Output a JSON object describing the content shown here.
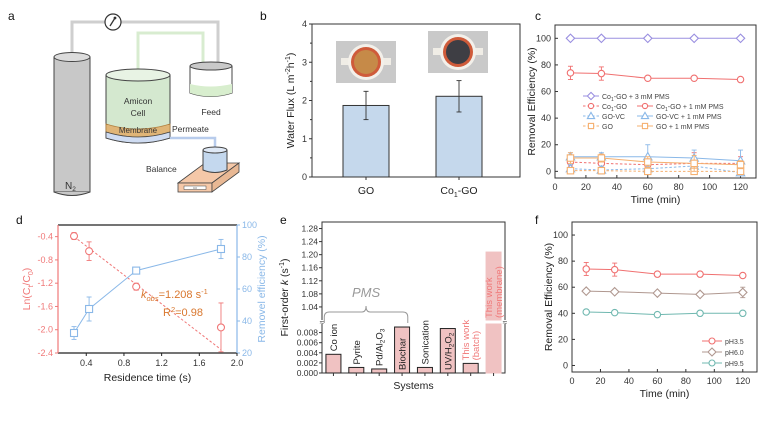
{
  "panel_labels": {
    "a": "a",
    "b": "b",
    "c": "c",
    "d": "d",
    "e": "e",
    "f": "f"
  },
  "diagram": {
    "gas_cylinder_label": "N",
    "gas_cylinder_sub": "2",
    "cell_label_1": "Amicon",
    "cell_label_2": "Cell",
    "membrane_label": "Membrane",
    "feed_label": "Feed",
    "permeate_label": "Permeate",
    "balance_label": "Balance",
    "balance_display": "0.0",
    "icons": [
      "pressure-gauge-icon",
      "gas-cylinder-icon",
      "amicon-cell-icon",
      "feed-beaker-icon",
      "permeate-beaker-icon",
      "balance-icon"
    ]
  },
  "chart_data": [
    {
      "id": "b",
      "type": "bar",
      "title": "",
      "xlabel": "",
      "ylabel": "Water Flux (L m-2h-1)",
      "ylabel_main": "Water Flux (L m",
      "ylabel_sup1": "-2",
      "ylabel_mid": "h",
      "ylabel_sup2": "-1",
      "ylabel_end": ")",
      "ylim": [
        0,
        4
      ],
      "yticks": [
        "0",
        "1",
        "2",
        "3",
        "4"
      ],
      "categories": [
        "GO",
        "Co1-GO"
      ],
      "category_main": [
        "GO",
        "Co"
      ],
      "category_sub": [
        "",
        "1"
      ],
      "category_end": [
        "",
        "-GO"
      ],
      "values": [
        1.87,
        2.11
      ],
      "errors": [
        0.37,
        0.41
      ],
      "insets": [
        "GO membrane photo (brown)",
        "Co1-GO membrane photo (black)"
      ],
      "bar_color": "#c5d8ec"
    },
    {
      "id": "c",
      "type": "line",
      "xlabel": "Time (min)",
      "ylabel": "Removal Efficiency (%)",
      "xlim": [
        0,
        130
      ],
      "ylim": [
        -5,
        110
      ],
      "xticks": [
        "0",
        "20",
        "40",
        "60",
        "80",
        "100",
        "120"
      ],
      "yticks": [
        "0",
        "20",
        "40",
        "60",
        "80",
        "100"
      ],
      "x": [
        10,
        30,
        60,
        90,
        120
      ],
      "series": [
        {
          "name": "Co1-GO + 3 mM PMS",
          "values": [
            100,
            100,
            100,
            100,
            100
          ],
          "errors": [
            0,
            0,
            0,
            0,
            0
          ],
          "color": "#9a8fe0",
          "marker": "diamond",
          "dash": false
        },
        {
          "name": "Co1-GO",
          "values": [
            7,
            6,
            5,
            6,
            6
          ],
          "errors": [
            3,
            3,
            5,
            8,
            5
          ],
          "color": "#f07070",
          "marker": "circle",
          "dash": true
        },
        {
          "name": "Co1-GO + 1 mM PMS",
          "values": [
            74,
            73.5,
            70,
            70,
            69
          ],
          "errors": [
            5,
            5,
            1.5,
            1.5,
            1.5
          ],
          "color": "#f07070",
          "marker": "circle",
          "dash": false
        },
        {
          "name": "GO-VC",
          "values": [
            2,
            1,
            2,
            4,
            -1
          ],
          "errors": [
            3,
            3,
            3,
            3,
            2
          ],
          "color": "#8ab8e8",
          "marker": "triangle",
          "dash": true
        },
        {
          "name": "GO-VC + 1 mM PMS",
          "values": [
            11,
            11,
            11,
            10,
            8
          ],
          "errors": [
            3,
            3,
            9,
            6,
            8
          ],
          "color": "#8ab8e8",
          "marker": "triangle",
          "dash": false
        },
        {
          "name": "GO",
          "values": [
            0.5,
            0.5,
            0,
            0,
            0
          ],
          "errors": [
            1,
            1,
            1,
            1,
            1
          ],
          "color": "#f5b070",
          "marker": "square",
          "dash": true
        },
        {
          "name": "GO + 1 mM PMS",
          "values": [
            10,
            10,
            7,
            6,
            5
          ],
          "errors": [
            4,
            3,
            4,
            6,
            3
          ],
          "color": "#f5b070",
          "marker": "square",
          "dash": false
        }
      ],
      "legend": [
        {
          "text_main": "Co",
          "text_sub": "1",
          "text_end": "-GO + 3 mM PMS"
        },
        {
          "text_main": "Co",
          "text_sub": "1",
          "text_end": "-GO"
        },
        {
          "text_main": "Co",
          "text_sub": "1",
          "text_end": "-GO + 1 mM PMS"
        },
        {
          "text_main": "GO-VC",
          "text_sub": "",
          "text_end": ""
        },
        {
          "text_main": "GO-VC + 1 mM PMS",
          "text_sub": "",
          "text_end": ""
        },
        {
          "text_main": "GO",
          "text_sub": "",
          "text_end": ""
        },
        {
          "text_main": "GO + 1 mM PMS",
          "text_sub": "",
          "text_end": ""
        }
      ],
      "legend_placement": "center-right"
    },
    {
      "id": "d",
      "type": "line",
      "xlabel": "Residence time (s)",
      "ylabel_left": "Ln(Ct/C0)",
      "ylabel_left_main": "Ln(C",
      "ylabel_left_sub1": "t",
      "ylabel_left_mid": "/C",
      "ylabel_left_sub2": "0",
      "ylabel_left_end": ")",
      "ylabel_right": "Removel efficiency (%)",
      "xlim": [
        0.1,
        2.0
      ],
      "ylim_left": [
        -2.4,
        -0.2
      ],
      "ylim_right": [
        20,
        100
      ],
      "xticks": [
        "0.4",
        "0.8",
        "1.2",
        "1.6",
        "2.0"
      ],
      "yticks_left": [
        "-0.4",
        "-0.8",
        "-1.2",
        "-1.6",
        "-2.0",
        "-2.4"
      ],
      "yticks_right": [
        "20",
        "40",
        "60",
        "80",
        "100"
      ],
      "x": [
        0.27,
        0.43,
        0.93,
        1.83
      ],
      "series": [
        {
          "name": "Ln(Ct/C0)",
          "axis": "left",
          "values": [
            -0.39,
            -0.65,
            -1.26,
            -1.96
          ],
          "errors": [
            0.06,
            0.16,
            0.06,
            0.42
          ],
          "color": "#f07878",
          "marker": "circle"
        },
        {
          "name": "Removal efficiency",
          "axis": "right",
          "values": [
            32.5,
            47.5,
            71.5,
            85
          ],
          "errors": [
            4,
            7.5,
            1.5,
            6
          ],
          "color": "#8ab8e8",
          "marker": "square"
        }
      ],
      "fit_line": {
        "x": [
          0.27,
          1.83
        ],
        "y": [
          -0.4,
          -2.34
        ],
        "color": "#f07878"
      },
      "annotation_k_main": "k",
      "annotation_k_sub": "obs",
      "annotation_k_end": "=1.208 s",
      "annotation_k_sup": "-1",
      "annotation_r_main": "R",
      "annotation_r_sup": "2",
      "annotation_r_end": "=0.98",
      "annotation_color": "#d9772e"
    },
    {
      "id": "e",
      "type": "bar",
      "xlabel": "Systems",
      "ylabel_main": "First-order ",
      "ylabel_k": "k",
      "ylabel_end": " (s",
      "ylabel_sup": "-1",
      "ylabel_close": ")",
      "ylim_lower": [
        0,
        0.0095
      ],
      "ylim_upper": [
        1.0,
        1.3
      ],
      "yticks_lower": [
        "0.000",
        "0.002",
        "0.004",
        "0.006",
        "0.008"
      ],
      "yticks_upper": [
        "1.04",
        "1.08",
        "1.12",
        "1.16",
        "1.20",
        "1.24",
        "1.28"
      ],
      "categories": [
        "Co ion",
        "Pyrite",
        "Pd/Al2O3",
        "Biochar",
        "Sonication",
        "UV/H2O2",
        "This work (batch)",
        "This work (membrane)"
      ],
      "values": [
        0.0037,
        0.0011,
        0.0008,
        0.0091,
        0.0011,
        0.0088,
        0.0019,
        1.208
      ],
      "label_lines": [
        [
          "Co ion"
        ],
        [
          "Pyrite"
        ],
        [
          "Pd/Al2O3"
        ],
        [
          "Biochar"
        ],
        [
          "Sonication"
        ],
        [
          "UV/H2O2"
        ],
        [
          "This work",
          "(batch)"
        ],
        [
          "This work",
          "(membrane)"
        ]
      ],
      "highlight": [
        false,
        false,
        false,
        false,
        false,
        false,
        true,
        true
      ],
      "label_inside": [
        false,
        false,
        false,
        true,
        false,
        true,
        false,
        true
      ],
      "bracket_label": "PMS",
      "bar_color": "#f0c2c2",
      "highlight_text_color": "#f07878"
    },
    {
      "id": "f",
      "type": "line",
      "xlabel": "Time (min)",
      "ylabel": "Removal Efficiency (%)",
      "xlim": [
        0,
        130
      ],
      "ylim": [
        -5,
        110
      ],
      "xticks": [
        "0",
        "20",
        "40",
        "60",
        "80",
        "100",
        "120"
      ],
      "yticks": [
        "0",
        "20",
        "40",
        "60",
        "80",
        "100"
      ],
      "x": [
        10,
        30,
        60,
        90,
        120
      ],
      "series": [
        {
          "name": "pH3.5",
          "values": [
            74,
            73.5,
            70,
            70,
            69
          ],
          "errors": [
            5,
            5,
            1.5,
            1.5,
            1.5
          ],
          "color": "#f07070",
          "marker": "circle"
        },
        {
          "name": "pH6.0",
          "values": [
            57,
            56.5,
            55.5,
            54.5,
            56
          ],
          "errors": [
            1,
            1,
            1,
            1,
            4
          ],
          "color": "#b09890",
          "marker": "diamond"
        },
        {
          "name": "pH9.5",
          "values": [
            41,
            40.5,
            39,
            40,
            40
          ],
          "errors": [
            1,
            1,
            1.5,
            1,
            1
          ],
          "color": "#70b8b0",
          "marker": "circle"
        }
      ],
      "legend_placement": "bottom-right"
    }
  ]
}
